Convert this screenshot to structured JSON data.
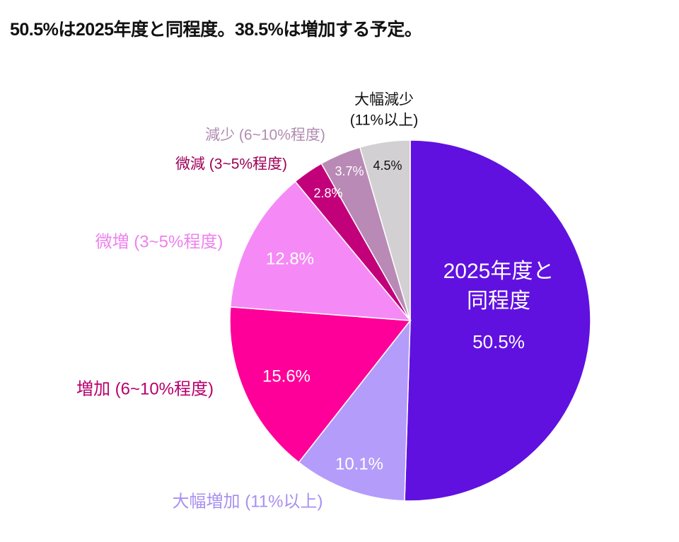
{
  "title": "50.5%は2025年度と同程度。38.5%は増加する予定。",
  "chart_data": {
    "type": "pie",
    "start_angle": "top (12 o'clock)",
    "direction": "clockwise",
    "slices": [
      {
        "label_lines": [
          "2025年度と",
          "同程度"
        ],
        "value": 50.5,
        "value_label": "50.5%",
        "color": "#6011e0",
        "label_color": "#ffffff",
        "value_color": "#ffffff"
      },
      {
        "label_lines": [
          "大幅増加 (11%以上)"
        ],
        "value": 10.1,
        "value_label": "10.1%",
        "color": "#b49cfa",
        "label_color": "#a990f0",
        "value_color": "#ffffff"
      },
      {
        "label_lines": [
          "増加 (6~10%程度)"
        ],
        "value": 15.6,
        "value_label": "15.6%",
        "color": "#fe0099",
        "label_color": "#b8006c",
        "value_color": "#ffffff"
      },
      {
        "label_lines": [
          "微増 (3~5%程度)"
        ],
        "value": 12.8,
        "value_label": "12.8%",
        "color": "#f58af6",
        "label_color": "#ee82ee",
        "value_color": "#ffffff"
      },
      {
        "label_lines": [
          "微減 (3~5%程度)"
        ],
        "value": 2.8,
        "value_label": "2.8%",
        "color": "#c2007a",
        "label_color": "#9c0058",
        "value_color": "#ffffff"
      },
      {
        "label_lines": [
          "減少 (6~10%程度)"
        ],
        "value": 3.7,
        "value_label": "3.7%",
        "color": "#b98ab6",
        "label_color": "#b08cb0",
        "value_color": "#ffffff"
      },
      {
        "label_lines": [
          "大幅減少",
          "(11%以上)"
        ],
        "value": 4.5,
        "value_label": "4.5%",
        "color": "#d2d0d2",
        "label_color": "#111111",
        "value_color": "#111111"
      }
    ]
  }
}
